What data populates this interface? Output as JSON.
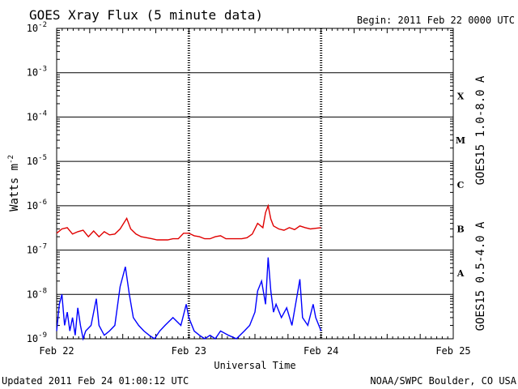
{
  "chart_data": {
    "type": "line",
    "title": "GOES Xray Flux (5 minute data)",
    "begin_label": "Begin:  2011 Feb 22 0000 UTC",
    "xlabel": "Universal Time",
    "ylabel_base": "Watts m",
    "ylabel_exp": "-2",
    "yscale": "log",
    "ylim": [
      1e-09,
      0.01
    ],
    "xlim": [
      0,
      3
    ],
    "x_ticks": [
      {
        "x": 0,
        "label": "Feb 22"
      },
      {
        "x": 1,
        "label": "Feb 23"
      },
      {
        "x": 2,
        "label": "Feb 24"
      },
      {
        "x": 3,
        "label": "Feb 25"
      }
    ],
    "y_ticks": [
      {
        "value": 0.01,
        "base": "10",
        "exp": "-2"
      },
      {
        "value": 0.001,
        "base": "10",
        "exp": "-3"
      },
      {
        "value": 0.0001,
        "base": "10",
        "exp": "-4"
      },
      {
        "value": 1e-05,
        "base": "10",
        "exp": "-5"
      },
      {
        "value": 1e-06,
        "base": "10",
        "exp": "-6"
      },
      {
        "value": 1e-07,
        "base": "10",
        "exp": "-7"
      },
      {
        "value": 1e-08,
        "base": "10",
        "exp": "-8"
      },
      {
        "value": 1e-09,
        "base": "10",
        "exp": "-9"
      }
    ],
    "flare_classes": [
      {
        "label": "X",
        "value": 0.0003
      },
      {
        "label": "M",
        "value": 3e-05
      },
      {
        "label": "C",
        "value": 3e-06
      },
      {
        "label": "B",
        "value": 3e-07
      },
      {
        "label": "A",
        "value": 3e-08
      }
    ],
    "series": [
      {
        "name": "GOES15 1.0-8.0 A",
        "color": "#e00000",
        "points": [
          [
            0.0,
            2.4e-07
          ],
          [
            0.04,
            3e-07
          ],
          [
            0.08,
            3.2e-07
          ],
          [
            0.12,
            2.3e-07
          ],
          [
            0.16,
            2.6e-07
          ],
          [
            0.2,
            2.8e-07
          ],
          [
            0.24,
            2e-07
          ],
          [
            0.28,
            2.7e-07
          ],
          [
            0.32,
            2e-07
          ],
          [
            0.36,
            2.6e-07
          ],
          [
            0.4,
            2.2e-07
          ],
          [
            0.44,
            2.3e-07
          ],
          [
            0.48,
            3e-07
          ],
          [
            0.53,
            5.2e-07
          ],
          [
            0.56,
            3e-07
          ],
          [
            0.6,
            2.3e-07
          ],
          [
            0.64,
            2e-07
          ],
          [
            0.68,
            1.9e-07
          ],
          [
            0.72,
            1.8e-07
          ],
          [
            0.76,
            1.7e-07
          ],
          [
            0.8,
            1.7e-07
          ],
          [
            0.84,
            1.7e-07
          ],
          [
            0.88,
            1.8e-07
          ],
          [
            0.92,
            1.8e-07
          ],
          [
            0.96,
            2.4e-07
          ],
          [
            1.0,
            2.4e-07
          ],
          [
            1.04,
            2.1e-07
          ],
          [
            1.08,
            2e-07
          ],
          [
            1.12,
            1.8e-07
          ],
          [
            1.16,
            1.8e-07
          ],
          [
            1.2,
            2e-07
          ],
          [
            1.24,
            2.1e-07
          ],
          [
            1.28,
            1.8e-07
          ],
          [
            1.32,
            1.8e-07
          ],
          [
            1.36,
            1.8e-07
          ],
          [
            1.4,
            1.8e-07
          ],
          [
            1.44,
            1.9e-07
          ],
          [
            1.48,
            2.3e-07
          ],
          [
            1.52,
            4e-07
          ],
          [
            1.56,
            3.2e-07
          ],
          [
            1.58,
            7e-07
          ],
          [
            1.6,
            1e-06
          ],
          [
            1.62,
            5e-07
          ],
          [
            1.64,
            3.5e-07
          ],
          [
            1.68,
            3e-07
          ],
          [
            1.72,
            2.8e-07
          ],
          [
            1.76,
            3.2e-07
          ],
          [
            1.8,
            2.9e-07
          ],
          [
            1.84,
            3.5e-07
          ],
          [
            1.88,
            3.2e-07
          ],
          [
            1.92,
            3e-07
          ],
          [
            1.96,
            3.1e-07
          ],
          [
            2.0,
            3.2e-07
          ]
        ]
      },
      {
        "name": "GOES15 0.5-4.0 A",
        "color": "#0000ff",
        "points": [
          [
            0.0,
            1.5e-09
          ],
          [
            0.02,
            6e-09
          ],
          [
            0.04,
            1e-08
          ],
          [
            0.06,
            2e-09
          ],
          [
            0.08,
            4e-09
          ],
          [
            0.1,
            1.5e-09
          ],
          [
            0.12,
            3e-09
          ],
          [
            0.14,
            1.2e-09
          ],
          [
            0.16,
            5e-09
          ],
          [
            0.18,
            2e-09
          ],
          [
            0.2,
            1e-09
          ],
          [
            0.22,
            1.5e-09
          ],
          [
            0.26,
            2e-09
          ],
          [
            0.3,
            8e-09
          ],
          [
            0.32,
            2e-09
          ],
          [
            0.36,
            1.2e-09
          ],
          [
            0.4,
            1.5e-09
          ],
          [
            0.44,
            2e-09
          ],
          [
            0.48,
            1.5e-08
          ],
          [
            0.52,
            4.2e-08
          ],
          [
            0.55,
            1e-08
          ],
          [
            0.58,
            3e-09
          ],
          [
            0.62,
            2e-09
          ],
          [
            0.66,
            1.5e-09
          ],
          [
            0.7,
            1.2e-09
          ],
          [
            0.74,
            1e-09
          ],
          [
            0.78,
            1.5e-09
          ],
          [
            0.82,
            2e-09
          ],
          [
            0.88,
            3e-09
          ],
          [
            0.94,
            2e-09
          ],
          [
            0.98,
            6e-09
          ],
          [
            1.0,
            3e-09
          ],
          [
            1.04,
            1.5e-09
          ],
          [
            1.08,
            1.2e-09
          ],
          [
            1.12,
            1e-09
          ],
          [
            1.16,
            1.2e-09
          ],
          [
            1.2,
            1e-09
          ],
          [
            1.24,
            1.5e-09
          ],
          [
            1.3,
            1.2e-09
          ],
          [
            1.36,
            1e-09
          ],
          [
            1.42,
            1.5e-09
          ],
          [
            1.46,
            2e-09
          ],
          [
            1.5,
            4e-09
          ],
          [
            1.52,
            1.2e-08
          ],
          [
            1.55,
            2e-08
          ],
          [
            1.58,
            6e-09
          ],
          [
            1.6,
            6.8e-08
          ],
          [
            1.62,
            1.2e-08
          ],
          [
            1.64,
            4e-09
          ],
          [
            1.66,
            6e-09
          ],
          [
            1.7,
            3e-09
          ],
          [
            1.74,
            5e-09
          ],
          [
            1.78,
            2e-09
          ],
          [
            1.82,
            1e-08
          ],
          [
            1.84,
            2.2e-08
          ],
          [
            1.86,
            3e-09
          ],
          [
            1.9,
            2e-09
          ],
          [
            1.94,
            6e-09
          ],
          [
            1.96,
            3e-09
          ],
          [
            2.0,
            1.5e-09
          ]
        ]
      }
    ]
  },
  "footer": {
    "updated": "Updated 2011 Feb 24 01:00:12 UTC",
    "source": "NOAA/SWPC Boulder, CO USA"
  }
}
